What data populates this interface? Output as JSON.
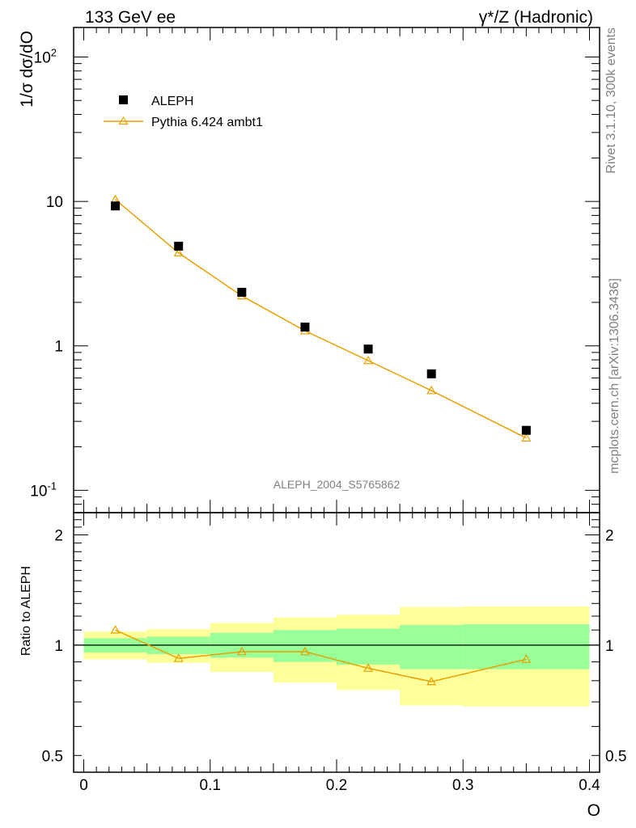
{
  "header": {
    "left_title": "133 GeV ee",
    "right_title": "γ*/Z (Hadronic)"
  },
  "side_labels": {
    "rivet": "Rivet 3.1.10,  300k events",
    "mcplots": "mcplots.cern.ch [arXiv:1306.3436]"
  },
  "analysis_label": "ALEPH_2004_S5765862",
  "chart_data": [
    {
      "type": "scatter",
      "panel": "main",
      "ylabel": "1/σ  dσ/dO",
      "yscale": "log",
      "ylim": [
        0.07,
        160
      ],
      "xlim": [
        -0.008,
        0.408
      ],
      "yticks": [
        "10^-1",
        "1",
        "10",
        "10^2"
      ],
      "legend_position": "top-left",
      "series": [
        {
          "name": "ALEPH",
          "marker": "square",
          "color": "#000000",
          "x": [
            0.025,
            0.075,
            0.125,
            0.175,
            0.225,
            0.275,
            0.35
          ],
          "y": [
            9.3,
            4.9,
            2.35,
            1.35,
            0.95,
            0.64,
            0.26
          ]
        },
        {
          "name": "Pythia 6.424 ambt1",
          "marker": "triangle-open",
          "line": true,
          "color": "#e8a000",
          "x": [
            0.025,
            0.075,
            0.125,
            0.175,
            0.225,
            0.275,
            0.35
          ],
          "y": [
            10.3,
            4.4,
            2.22,
            1.27,
            0.79,
            0.49,
            0.23
          ]
        }
      ]
    },
    {
      "type": "line",
      "panel": "ratio",
      "ylabel": "Ratio to ALEPH",
      "xlabel": "O",
      "ylim": [
        0.45,
        2.3
      ],
      "xlim": [
        -0.008,
        0.408
      ],
      "xticks": [
        "0",
        "0.1",
        "0.2",
        "0.3",
        "0.4"
      ],
      "yticks": [
        "0.5",
        "1",
        "2"
      ],
      "bands": {
        "bins": [
          [
            0.0,
            0.05
          ],
          [
            0.05,
            0.1
          ],
          [
            0.1,
            0.15
          ],
          [
            0.15,
            0.2
          ],
          [
            0.2,
            0.25
          ],
          [
            0.25,
            0.3
          ],
          [
            0.3,
            0.4
          ]
        ],
        "inner": [
          [
            0.955,
            1.045
          ],
          [
            0.945,
            1.055
          ],
          [
            0.925,
            1.08
          ],
          [
            0.9,
            1.1
          ],
          [
            0.885,
            1.11
          ],
          [
            0.86,
            1.135
          ],
          [
            0.86,
            1.14
          ]
        ],
        "outer": [
          [
            0.915,
            1.09
          ],
          [
            0.895,
            1.105
          ],
          [
            0.845,
            1.15
          ],
          [
            0.79,
            1.19
          ],
          [
            0.755,
            1.21
          ],
          [
            0.685,
            1.27
          ],
          [
            0.68,
            1.275
          ]
        ],
        "inner_color": "#99ff99",
        "outer_color": "#ffff99"
      },
      "series": [
        {
          "name": "Pythia 6.424 ambt1",
          "marker": "triangle-open",
          "color": "#e8a000",
          "x": [
            0.025,
            0.075,
            0.125,
            0.175,
            0.225,
            0.275,
            0.35
          ],
          "y": [
            1.1,
            0.92,
            0.96,
            0.96,
            0.865,
            0.795,
            0.915
          ]
        }
      ]
    }
  ]
}
